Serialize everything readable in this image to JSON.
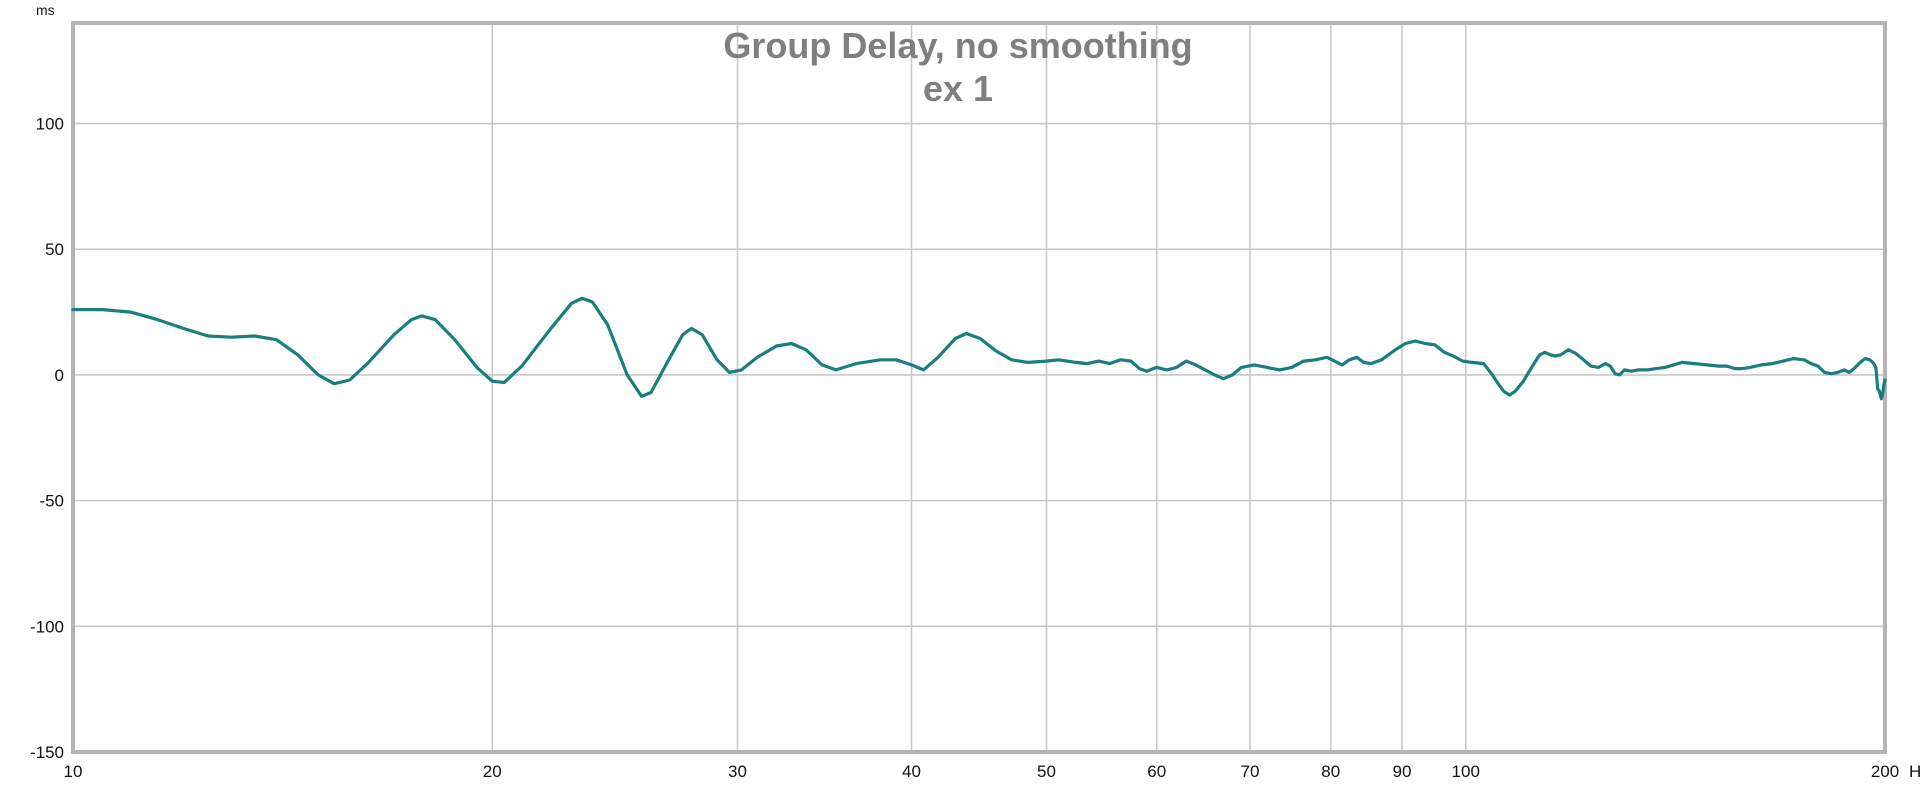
{
  "chart_data": {
    "type": "line",
    "title": "Group Delay, no smoothing",
    "subtitle": "ex 1",
    "ylabel": "ms",
    "xlabel": "Hz",
    "x_scale": "log",
    "xlim": [
      10,
      200
    ],
    "ylim": [
      -150,
      140
    ],
    "grid": true,
    "x_ticks": [
      {
        "value": 10,
        "label": "10"
      },
      {
        "value": 20,
        "label": "20"
      },
      {
        "value": 30,
        "label": "30"
      },
      {
        "value": 40,
        "label": "40"
      },
      {
        "value": 50,
        "label": "50"
      },
      {
        "value": 60,
        "label": "60"
      },
      {
        "value": 70,
        "label": "70"
      },
      {
        "value": 80,
        "label": "80"
      },
      {
        "value": 90,
        "label": "90"
      },
      {
        "value": 100,
        "label": "100"
      },
      {
        "value": 200,
        "label": "200"
      }
    ],
    "y_ticks": [
      {
        "value": 100,
        "label": "100"
      },
      {
        "value": 50,
        "label": "50"
      },
      {
        "value": 0,
        "label": "0"
      },
      {
        "value": -50,
        "label": "-50"
      },
      {
        "value": -100,
        "label": "-100"
      },
      {
        "value": -150,
        "label": "-150"
      }
    ],
    "colors": {
      "series": "#1a7e80",
      "grid": "#c8c8c8",
      "frame": "#b4b4b4",
      "title": "#7f7f7f"
    },
    "series": [
      {
        "color": "#1a7e80",
        "points": [
          [
            10.0,
            26.0
          ],
          [
            10.5,
            26.0
          ],
          [
            11.0,
            25.0
          ],
          [
            11.5,
            22.0
          ],
          [
            12.0,
            18.5
          ],
          [
            12.5,
            15.5
          ],
          [
            13.0,
            15.0
          ],
          [
            13.5,
            15.5
          ],
          [
            14.0,
            14.0
          ],
          [
            14.5,
            8.0
          ],
          [
            15.0,
            0.0
          ],
          [
            15.4,
            -3.5
          ],
          [
            15.8,
            -2.0
          ],
          [
            16.3,
            5.0
          ],
          [
            17.0,
            16.0
          ],
          [
            17.5,
            22.0
          ],
          [
            17.8,
            23.5
          ],
          [
            18.2,
            22.0
          ],
          [
            18.8,
            14.0
          ],
          [
            19.5,
            3.0
          ],
          [
            20.0,
            -2.5
          ],
          [
            20.4,
            -3.0
          ],
          [
            21.0,
            3.5
          ],
          [
            22.0,
            18.0
          ],
          [
            22.8,
            28.5
          ],
          [
            23.2,
            30.5
          ],
          [
            23.6,
            29.0
          ],
          [
            24.2,
            20.0
          ],
          [
            25.0,
            0.0
          ],
          [
            25.6,
            -8.5
          ],
          [
            26.0,
            -7.0
          ],
          [
            26.8,
            6.5
          ],
          [
            27.4,
            16.0
          ],
          [
            27.8,
            18.5
          ],
          [
            28.3,
            16.0
          ],
          [
            29.0,
            6.0
          ],
          [
            29.6,
            1.0
          ],
          [
            30.2,
            2.0
          ],
          [
            31.0,
            7.0
          ],
          [
            32.0,
            11.5
          ],
          [
            32.8,
            12.5
          ],
          [
            33.6,
            10.0
          ],
          [
            34.5,
            4.0
          ],
          [
            35.3,
            2.0
          ],
          [
            36.5,
            4.5
          ],
          [
            38.0,
            6.0
          ],
          [
            39.0,
            6.0
          ],
          [
            40.0,
            4.0
          ],
          [
            40.8,
            2.0
          ],
          [
            41.8,
            7.0
          ],
          [
            43.0,
            14.5
          ],
          [
            43.8,
            16.5
          ],
          [
            44.8,
            14.5
          ],
          [
            46.0,
            9.5
          ],
          [
            47.2,
            6.0
          ],
          [
            48.5,
            5.0
          ],
          [
            50.0,
            5.5
          ],
          [
            51.0,
            6.0
          ],
          [
            52.5,
            5.0
          ],
          [
            53.5,
            4.5
          ],
          [
            54.5,
            5.5
          ],
          [
            55.5,
            4.5
          ],
          [
            56.5,
            6.0
          ],
          [
            57.5,
            5.5
          ],
          [
            58.3,
            2.5
          ],
          [
            59.0,
            1.5
          ],
          [
            60.0,
            3.0
          ],
          [
            61.0,
            2.0
          ],
          [
            62.0,
            3.0
          ],
          [
            63.0,
            5.5
          ],
          [
            64.0,
            4.0
          ],
          [
            65.0,
            2.0
          ],
          [
            66.0,
            0.0
          ],
          [
            67.0,
            -1.5
          ],
          [
            68.0,
            0.0
          ],
          [
            69.0,
            3.0
          ],
          [
            70.5,
            4.0
          ],
          [
            72.0,
            3.0
          ],
          [
            73.5,
            2.0
          ],
          [
            75.0,
            3.0
          ],
          [
            76.5,
            5.5
          ],
          [
            78.0,
            6.0
          ],
          [
            79.5,
            7.0
          ],
          [
            80.5,
            5.5
          ],
          [
            81.5,
            4.0
          ],
          [
            82.5,
            6.0
          ],
          [
            83.5,
            7.0
          ],
          [
            84.5,
            5.0
          ],
          [
            85.5,
            4.5
          ],
          [
            87.0,
            6.0
          ],
          [
            89.0,
            10.0
          ],
          [
            90.5,
            12.5
          ],
          [
            92.0,
            13.5
          ],
          [
            93.5,
            12.5
          ],
          [
            95.0,
            12.0
          ],
          [
            96.5,
            9.0
          ],
          [
            98.0,
            7.5
          ],
          [
            99.5,
            5.5
          ],
          [
            101.0,
            5.0
          ],
          [
            103.0,
            4.5
          ],
          [
            104.5,
            0.0
          ],
          [
            105.5,
            -3.5
          ],
          [
            106.5,
            -6.5
          ],
          [
            107.5,
            -8.0
          ],
          [
            108.5,
            -6.5
          ],
          [
            110.0,
            -2.5
          ],
          [
            111.5,
            3.0
          ],
          [
            113.0,
            8.0
          ],
          [
            114.0,
            9.0
          ],
          [
            115.0,
            8.0
          ],
          [
            116.0,
            7.5
          ],
          [
            117.0,
            8.0
          ],
          [
            118.5,
            10.0
          ],
          [
            120.0,
            8.5
          ],
          [
            121.5,
            6.0
          ],
          [
            123.0,
            3.5
          ],
          [
            124.5,
            3.0
          ],
          [
            126.0,
            4.5
          ],
          [
            127.0,
            3.5
          ],
          [
            128.0,
            0.5
          ],
          [
            129.0,
            0.0
          ],
          [
            130.0,
            2.0
          ],
          [
            131.5,
            1.5
          ],
          [
            133.0,
            2.0
          ],
          [
            135.0,
            2.0
          ],
          [
            137.0,
            2.5
          ],
          [
            139.0,
            3.0
          ],
          [
            141.0,
            4.0
          ],
          [
            143.0,
            5.0
          ],
          [
            146.0,
            4.5
          ],
          [
            149.0,
            4.0
          ],
          [
            152.0,
            3.5
          ],
          [
            154.0,
            3.5
          ],
          [
            156.0,
            2.5
          ],
          [
            158.0,
            2.5
          ],
          [
            160.0,
            3.0
          ],
          [
            163.0,
            4.0
          ],
          [
            166.0,
            4.5
          ],
          [
            169.0,
            5.5
          ],
          [
            172.0,
            6.5
          ],
          [
            175.0,
            6.0
          ],
          [
            177.0,
            4.5
          ],
          [
            179.0,
            3.5
          ],
          [
            181.0,
            1.0
          ],
          [
            183.0,
            0.5
          ],
          [
            185.0,
            1.0
          ],
          [
            187.0,
            2.0
          ],
          [
            188.5,
            1.0
          ],
          [
            190.0,
            2.5
          ],
          [
            192.0,
            5.0
          ],
          [
            193.5,
            6.5
          ],
          [
            195.0,
            6.0
          ],
          [
            196.0,
            5.0
          ],
          [
            197.0,
            3.0
          ],
          [
            197.6,
            -5.5
          ],
          [
            198.2,
            -6.5
          ],
          [
            198.8,
            -9.5
          ],
          [
            199.3,
            -7.0
          ],
          [
            199.7,
            -3.5
          ],
          [
            200.0,
            -2.0
          ]
        ]
      }
    ]
  }
}
